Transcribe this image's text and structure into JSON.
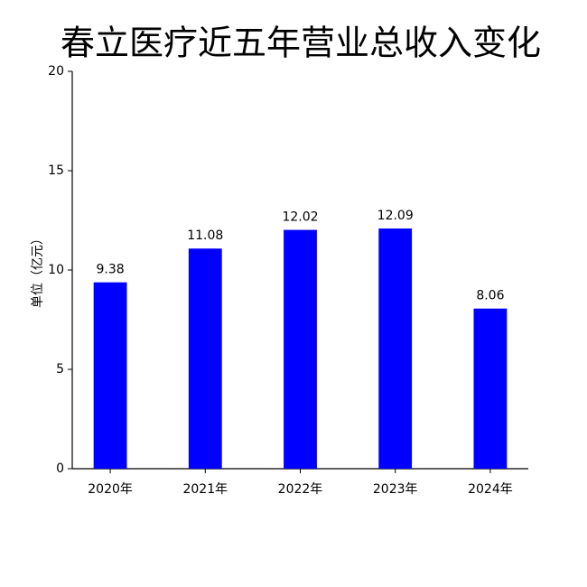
{
  "chart_data": {
    "type": "bar",
    "title": "春立医疗近五年营业总收入变化",
    "y_label": "单位（亿元）",
    "categories": [
      "2020年",
      "2021年",
      "2022年",
      "2023年",
      "2024年"
    ],
    "values": [
      9.38,
      11.08,
      12.02,
      12.09,
      8.06
    ],
    "color": "#0000ff",
    "ylim": [
      0,
      20
    ],
    "yticks": [
      0,
      5,
      10,
      15,
      20
    ],
    "grid": false,
    "show_value_labels": true
  }
}
